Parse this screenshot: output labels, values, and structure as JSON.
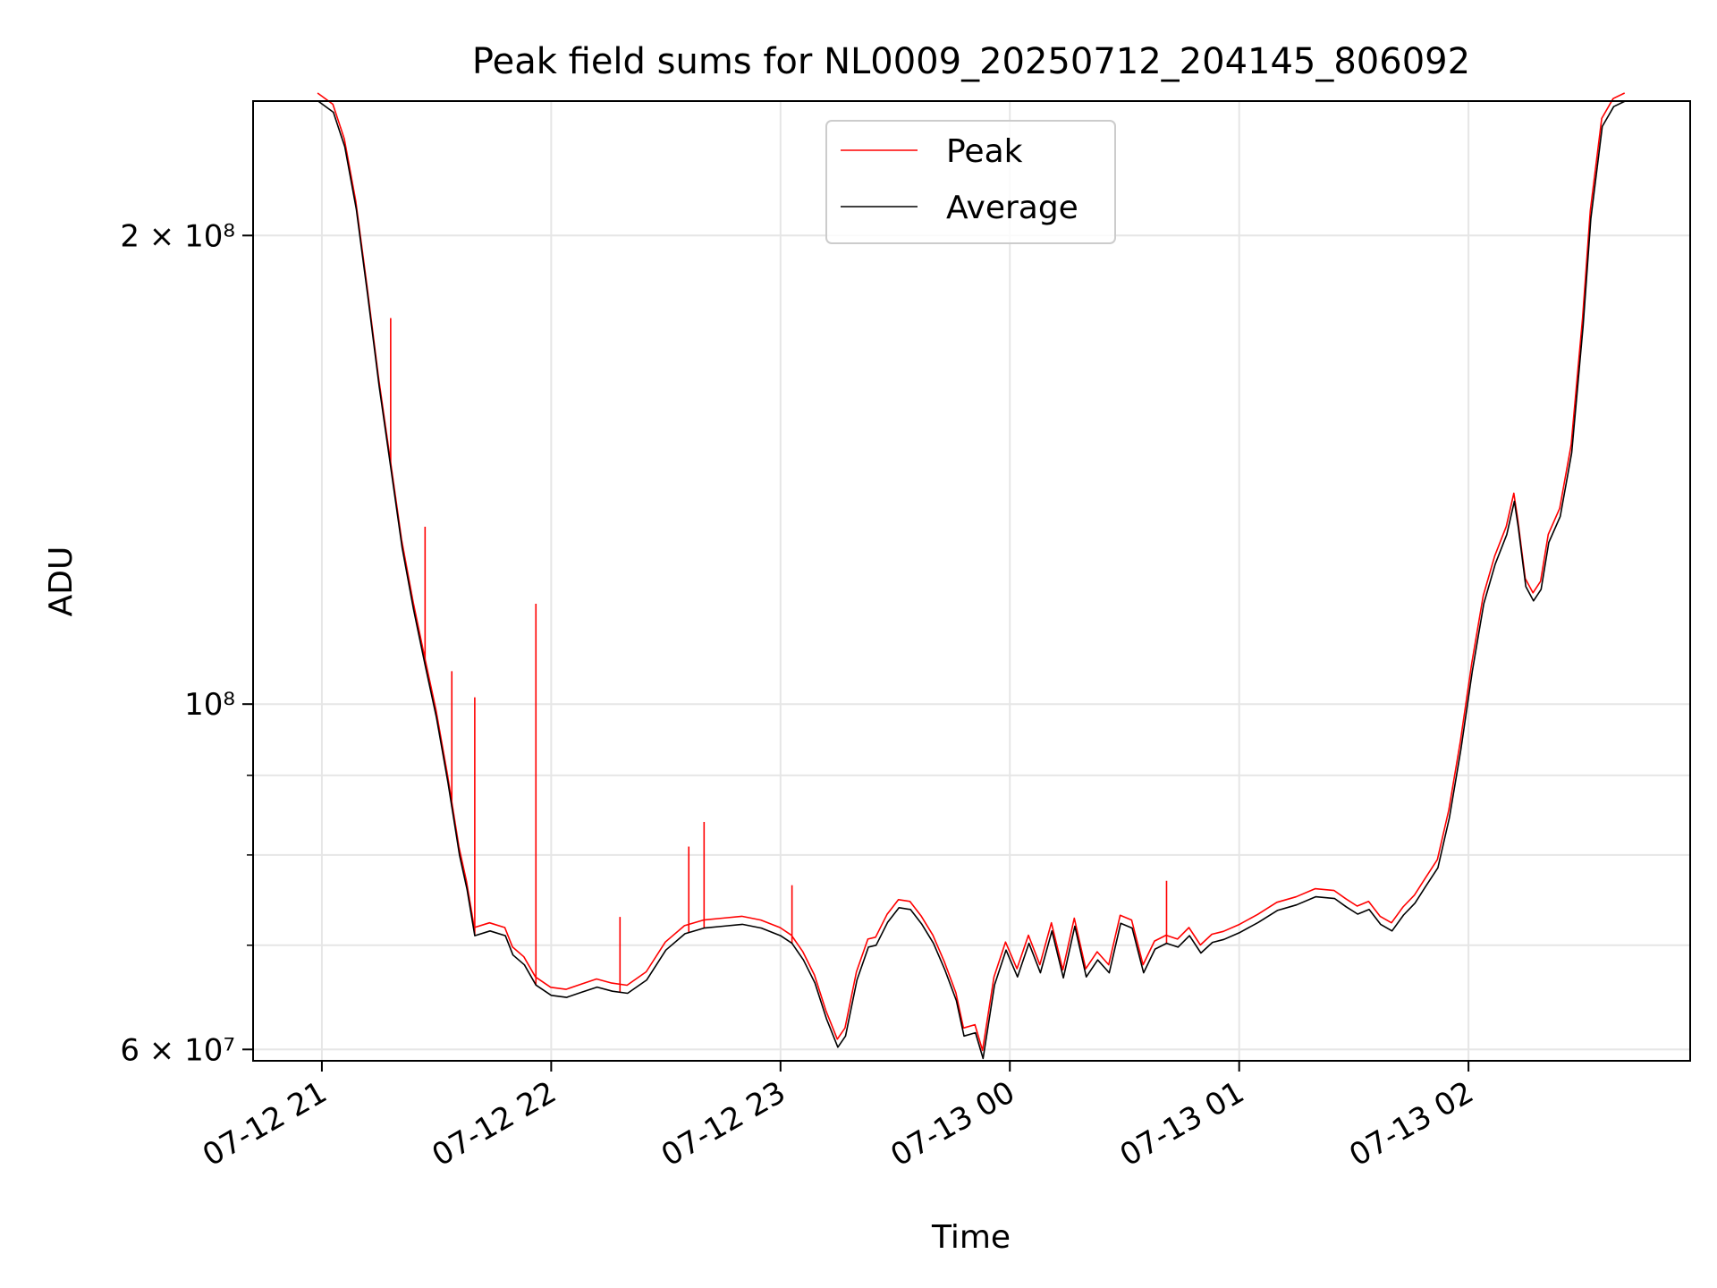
{
  "chart_data": {
    "type": "line",
    "title": "Peak field sums for NL0009_20250712_204145_806092",
    "xlabel": "Time",
    "ylabel": "ADU",
    "y_scale": "log",
    "ylim": [
      59000000,
      244000000
    ],
    "xlim": [
      "2025-07-12 20:42",
      "2025-07-13 02:58"
    ],
    "grid": true,
    "legend_position": "upper center",
    "x_ticks": [
      {
        "t": "2025-07-12 21:00",
        "label": "07-12 21"
      },
      {
        "t": "2025-07-12 22:00",
        "label": "07-12 22"
      },
      {
        "t": "2025-07-12 23:00",
        "label": "07-12 23"
      },
      {
        "t": "2025-07-13 00:00",
        "label": "07-13 00"
      },
      {
        "t": "2025-07-13 01:00",
        "label": "07-13 01"
      },
      {
        "t": "2025-07-13 02:00",
        "label": "07-13 02"
      }
    ],
    "y_ticks_major": [
      {
        "v": 60000000,
        "label": "6 × 10⁷"
      },
      {
        "v": 100000000,
        "label": "10⁸"
      },
      {
        "v": 200000000,
        "label": "2 × 10⁸"
      }
    ],
    "y_ticks_minor": [
      70000000,
      80000000,
      90000000
    ],
    "average": {
      "name": "Average",
      "color": "#000000",
      "points": [
        [
          "2025-07-12 20:59",
          244000000
        ],
        [
          "2025-07-12 21:03",
          240000000
        ],
        [
          "2025-07-12 21:06",
          228000000
        ],
        [
          "2025-07-12 21:09",
          208000000
        ],
        [
          "2025-07-12 21:12",
          183000000
        ],
        [
          "2025-07-12 21:15",
          160000000
        ],
        [
          "2025-07-12 21:18",
          142000000
        ],
        [
          "2025-07-12 21:21",
          126000000
        ],
        [
          "2025-07-12 21:24",
          115000000
        ],
        [
          "2025-07-12 21:27",
          106000000
        ],
        [
          "2025-07-12 21:30",
          98000000
        ],
        [
          "2025-07-12 21:33",
          89000000
        ],
        [
          "2025-07-12 21:36",
          80000000
        ],
        [
          "2025-07-12 21:38",
          76000000
        ],
        [
          "2025-07-12 21:40",
          71000000
        ],
        [
          "2025-07-12 21:44",
          71500000
        ],
        [
          "2025-07-12 21:48",
          71000000
        ],
        [
          "2025-07-12 21:50",
          69000000
        ],
        [
          "2025-07-12 21:53",
          68000000
        ],
        [
          "2025-07-12 21:56",
          66000000
        ],
        [
          "2025-07-12 22:00",
          65000000
        ],
        [
          "2025-07-12 22:04",
          64800000
        ],
        [
          "2025-07-12 22:08",
          65300000
        ],
        [
          "2025-07-12 22:12",
          65800000
        ],
        [
          "2025-07-12 22:16",
          65400000
        ],
        [
          "2025-07-12 22:20",
          65200000
        ],
        [
          "2025-07-12 22:25",
          66500000
        ],
        [
          "2025-07-12 22:30",
          69500000
        ],
        [
          "2025-07-12 22:35",
          71200000
        ],
        [
          "2025-07-12 22:40",
          71800000
        ],
        [
          "2025-07-12 22:45",
          72000000
        ],
        [
          "2025-07-12 22:50",
          72200000
        ],
        [
          "2025-07-12 22:55",
          71800000
        ],
        [
          "2025-07-12 23:00",
          71000000
        ],
        [
          "2025-07-12 23:03",
          70200000
        ],
        [
          "2025-07-12 23:06",
          68500000
        ],
        [
          "2025-07-12 23:09",
          66200000
        ],
        [
          "2025-07-12 23:12",
          62800000
        ],
        [
          "2025-07-12 23:15",
          60200000
        ],
        [
          "2025-07-12 23:17",
          61200000
        ],
        [
          "2025-07-12 23:20",
          66500000
        ],
        [
          "2025-07-12 23:23",
          69800000
        ],
        [
          "2025-07-12 23:25",
          70000000
        ],
        [
          "2025-07-12 23:28",
          72400000
        ],
        [
          "2025-07-12 23:31",
          74000000
        ],
        [
          "2025-07-12 23:34",
          73800000
        ],
        [
          "2025-07-12 23:37",
          72200000
        ],
        [
          "2025-07-12 23:40",
          70200000
        ],
        [
          "2025-07-12 23:43",
          67500000
        ],
        [
          "2025-07-12 23:46",
          64500000
        ],
        [
          "2025-07-12 23:48",
          61200000
        ],
        [
          "2025-07-12 23:51",
          61500000
        ],
        [
          "2025-07-12 23:53",
          59200000
        ],
        [
          "2025-07-12 23:56",
          66000000
        ],
        [
          "2025-07-12 23:59",
          69500000
        ],
        [
          "2025-07-13 00:02",
          66800000
        ],
        [
          "2025-07-13 00:05",
          70200000
        ],
        [
          "2025-07-13 00:08",
          67200000
        ],
        [
          "2025-07-13 00:11",
          71500000
        ],
        [
          "2025-07-13 00:14",
          66700000
        ],
        [
          "2025-07-13 00:17",
          72000000
        ],
        [
          "2025-07-13 00:20",
          66800000
        ],
        [
          "2025-07-13 00:23",
          68500000
        ],
        [
          "2025-07-13 00:26",
          67200000
        ],
        [
          "2025-07-13 00:29",
          72300000
        ],
        [
          "2025-07-13 00:32",
          71800000
        ],
        [
          "2025-07-13 00:35",
          67200000
        ],
        [
          "2025-07-13 00:38",
          69600000
        ],
        [
          "2025-07-13 00:41",
          70200000
        ],
        [
          "2025-07-13 00:44",
          69800000
        ],
        [
          "2025-07-13 00:47",
          71000000
        ],
        [
          "2025-07-13 00:50",
          69200000
        ],
        [
          "2025-07-13 00:53",
          70300000
        ],
        [
          "2025-07-13 00:56",
          70600000
        ],
        [
          "2025-07-13 01:00",
          71300000
        ],
        [
          "2025-07-13 01:05",
          72400000
        ],
        [
          "2025-07-13 01:10",
          73700000
        ],
        [
          "2025-07-13 01:15",
          74300000
        ],
        [
          "2025-07-13 01:20",
          75200000
        ],
        [
          "2025-07-13 01:25",
          75000000
        ],
        [
          "2025-07-13 01:28",
          74100000
        ],
        [
          "2025-07-13 01:31",
          73300000
        ],
        [
          "2025-07-13 01:34",
          73800000
        ],
        [
          "2025-07-13 01:37",
          72200000
        ],
        [
          "2025-07-13 01:40",
          71500000
        ],
        [
          "2025-07-13 01:43",
          73200000
        ],
        [
          "2025-07-13 01:46",
          74500000
        ],
        [
          "2025-07-13 01:49",
          76500000
        ],
        [
          "2025-07-13 01:52",
          78500000
        ],
        [
          "2025-07-13 01:55",
          84500000
        ],
        [
          "2025-07-13 01:58",
          93500000
        ],
        [
          "2025-07-13 02:01",
          105000000
        ],
        [
          "2025-07-13 02:04",
          116000000
        ],
        [
          "2025-07-13 02:07",
          123000000
        ],
        [
          "2025-07-13 02:10",
          128500000
        ],
        [
          "2025-07-13 02:12",
          135000000
        ],
        [
          "2025-07-13 02:13",
          130000000
        ],
        [
          "2025-07-13 02:15",
          119000000
        ],
        [
          "2025-07-13 02:17",
          116500000
        ],
        [
          "2025-07-13 02:19",
          118500000
        ],
        [
          "2025-07-13 02:21",
          127000000
        ],
        [
          "2025-07-13 02:24",
          132000000
        ],
        [
          "2025-07-13 02:27",
          145000000
        ],
        [
          "2025-07-13 02:30",
          175000000
        ],
        [
          "2025-07-13 02:32",
          205000000
        ],
        [
          "2025-07-13 02:35",
          235000000
        ],
        [
          "2025-07-13 02:38",
          242000000
        ],
        [
          "2025-07-13 02:41",
          244000000
        ]
      ]
    },
    "peak": {
      "name": "Peak",
      "color": "#ff0000",
      "spikes": [
        [
          "2025-07-12 21:18",
          177000000
        ],
        [
          "2025-07-12 21:27",
          130000000
        ],
        [
          "2025-07-12 21:34",
          105000000
        ],
        [
          "2025-07-12 21:40",
          101000000
        ],
        [
          "2025-07-12 21:56",
          116000000
        ],
        [
          "2025-07-12 22:18",
          73000000
        ],
        [
          "2025-07-12 22:36",
          81000000
        ],
        [
          "2025-07-12 22:40",
          84000000
        ],
        [
          "2025-07-12 23:03",
          76500000
        ],
        [
          "2025-07-13 00:41",
          77000000
        ]
      ]
    },
    "legend": [
      {
        "name": "Peak",
        "color": "#ff0000"
      },
      {
        "name": "Average",
        "color": "#000000"
      }
    ]
  }
}
